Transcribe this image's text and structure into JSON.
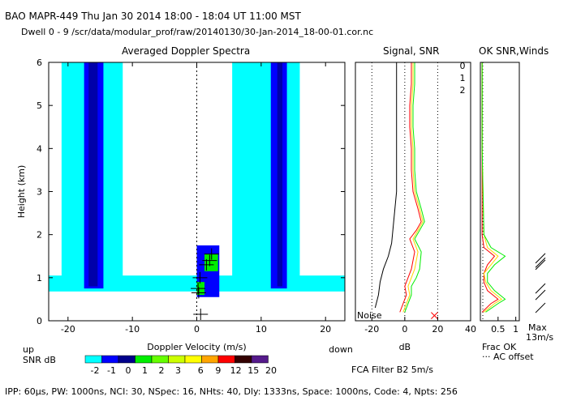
{
  "header": {
    "line1": "BAO  MAPR-449  Thu Jan 30 2014 18:00 - 18:04 UT 11:00 MST",
    "line2": "Dwell  0 - 9   /scr/data/modular_prof/raw/20140130/30-Jan-2014_18-00-01.cor.nc"
  },
  "footer": "IPP: 60μs,  PW: 1000ns,  NCI: 30,  NSpec: 16, NHts: 40,  Dly: 1333ns,  Space: 1000ns,  Code: 4,  Npts: 256",
  "fca_filter": "FCA Filter B2  5m/s",
  "colors": {
    "light_cyan": "#00ffff",
    "blue": "#0000ff",
    "navy": "#0000aa",
    "green": "#00ee00",
    "red": "#ff0000",
    "yellow": "#ffd700"
  },
  "chart_data": [
    {
      "type": "heatmap",
      "title": "Averaged Doppler Spectra",
      "xlabel": "Doppler Velocity (m/s)",
      "ylabel": "Height (km)",
      "xlim": [
        -23,
        23
      ],
      "ylim": [
        0,
        6
      ],
      "x_ticks": [
        -20,
        -10,
        0,
        10,
        20
      ],
      "y_ticks": [
        0,
        1,
        2,
        3,
        4,
        5,
        6
      ],
      "x_left_note": "up",
      "x_right_note": "down",
      "colorbar": {
        "label": "SNR dB",
        "levels": [
          "-2",
          "-1",
          "0",
          "1",
          "2",
          "3",
          "6",
          "9",
          "12",
          "15",
          "20"
        ],
        "colors": [
          "#00ffff",
          "#0000ff",
          "#00008b",
          "#00ee00",
          "#66ff00",
          "#ccff00",
          "#ffff00",
          "#ffa500",
          "#ff0000",
          "#330000",
          "#551a8b"
        ]
      },
      "bands": [
        {
          "name": "noise-band",
          "x_range": [
            -23,
            23
          ],
          "y_range": [
            0.68,
            1.05
          ],
          "color": "#00ffff"
        },
        {
          "name": "cyan-left",
          "x_range": [
            -21,
            -11.5
          ],
          "y_range": [
            0.8,
            6
          ],
          "color": "#00ffff"
        },
        {
          "name": "blue-left",
          "x_range": [
            -17.5,
            -14.5
          ],
          "y_range": [
            0.75,
            6
          ],
          "color": "#0000ff"
        },
        {
          "name": "navy-left",
          "x_range": [
            -16.8,
            -15.4
          ],
          "y_range": [
            0.8,
            6
          ],
          "color": "#0000aa"
        },
        {
          "name": "cyan-right",
          "x_range": [
            5.5,
            16
          ],
          "y_range": [
            0.8,
            6
          ],
          "color": "#00ffff"
        },
        {
          "name": "blue-right",
          "x_range": [
            11.5,
            14
          ],
          "y_range": [
            0.75,
            6
          ],
          "color": "#0000ff"
        },
        {
          "name": "navy-right",
          "x_range": [
            12.5,
            13.3
          ],
          "y_range": [
            0.8,
            6
          ],
          "color": "#0000aa"
        },
        {
          "name": "blue-lower",
          "x_range": [
            0,
            3.5
          ],
          "y_range": [
            0.55,
            1.75
          ],
          "color": "#0000ff"
        },
        {
          "name": "green-upper",
          "x_range": [
            1.2,
            3.3
          ],
          "y_range": [
            1.15,
            1.55
          ],
          "color": "#00ee00"
        },
        {
          "name": "green-lower",
          "x_range": [
            0,
            1.2
          ],
          "y_range": [
            0.6,
            0.9
          ],
          "color": "#00ee00"
        }
      ],
      "wind_markers": [
        {
          "x": 2.3,
          "y": 1.55
        },
        {
          "x": 2.0,
          "y": 1.4
        },
        {
          "x": 1.5,
          "y": 1.3
        },
        {
          "x": 0.5,
          "y": 1.0
        },
        {
          "x": 0.2,
          "y": 0.75
        },
        {
          "x": 0.3,
          "y": 0.65
        },
        {
          "x": 0.6,
          "y": 0.15
        }
      ]
    },
    {
      "type": "line",
      "title": "Signal, SNR",
      "xlabel": "dB",
      "xlim": [
        -30,
        40
      ],
      "ylim": [
        0,
        6
      ],
      "x_ticks": [
        -20,
        0,
        20,
        40
      ],
      "noise_label": "Noise",
      "series": [
        {
          "name": "0",
          "color": "#ff0000",
          "x": [
            -3,
            -2,
            1,
            0,
            2,
            4,
            6,
            3,
            7,
            10,
            8,
            5,
            4,
            4,
            3,
            3,
            4,
            4,
            4
          ],
          "y": [
            0.2,
            0.3,
            0.6,
            0.8,
            1.0,
            1.2,
            1.6,
            1.9,
            2.1,
            2.3,
            2.6,
            3.0,
            3.5,
            4.0,
            4.5,
            5.0,
            5.5,
            5.8,
            6.0
          ]
        },
        {
          "name": "1",
          "color": "#ffd700",
          "x": [
            -1,
            0,
            3,
            2,
            4,
            6,
            8,
            5,
            8,
            11,
            9,
            6,
            5,
            5,
            4,
            4,
            5,
            5,
            5
          ],
          "y": [
            0.2,
            0.3,
            0.6,
            0.8,
            1.0,
            1.2,
            1.6,
            1.9,
            2.1,
            2.3,
            2.6,
            3.0,
            3.5,
            4.0,
            4.5,
            5.0,
            5.5,
            5.8,
            6.0
          ]
        },
        {
          "name": "2",
          "color": "#00ee00",
          "x": [
            0,
            1,
            4,
            4,
            7,
            9,
            10,
            6,
            9,
            12,
            10,
            7,
            6,
            6,
            5,
            5,
            6,
            6,
            6
          ],
          "y": [
            0.2,
            0.3,
            0.6,
            0.8,
            1.0,
            1.2,
            1.6,
            1.9,
            2.1,
            2.3,
            2.6,
            3.0,
            3.5,
            4.0,
            4.5,
            5.0,
            5.5,
            5.8,
            6.0
          ]
        },
        {
          "name": "",
          "color": "#000000",
          "x": [
            -18,
            -16,
            -15,
            -13,
            -10,
            -8,
            -7,
            -6,
            -5,
            -5,
            -5,
            -5,
            -5,
            -5,
            -5,
            -5,
            -5
          ],
          "y": [
            0.3,
            0.6,
            0.9,
            1.2,
            1.5,
            1.8,
            2.2,
            2.6,
            3.0,
            3.5,
            4.0,
            4.5,
            5.0,
            5.5,
            5.8,
            6.0,
            6.0
          ]
        }
      ],
      "marker": {
        "x": 18,
        "y": 0.12
      }
    },
    {
      "type": "line",
      "title": "OK SNR,Winds",
      "xlim": [
        0,
        1.1
      ],
      "ylim": [
        0,
        6
      ],
      "x_ticks": [
        0.5,
        1
      ],
      "x_tick_labels": [
        "0.5",
        "1"
      ],
      "legend": [
        "0",
        "1",
        "2"
      ],
      "notes": [
        "Frac OK",
        "AC offset",
        "Max",
        "13m/s"
      ],
      "series": [
        {
          "name": "0",
          "color": "#ff0000",
          "x": [
            0.05,
            0.3,
            0.5,
            0.2,
            0.1,
            0.1,
            0.2,
            0.4,
            0.1,
            0.05,
            0.05,
            0.05
          ],
          "y": [
            0.2,
            0.4,
            0.5,
            0.7,
            0.9,
            1.1,
            1.3,
            1.5,
            1.7,
            2.0,
            4.0,
            6.0
          ]
        },
        {
          "name": "1",
          "color": "#ffd700",
          "x": [
            0.1,
            0.4,
            0.6,
            0.3,
            0.15,
            0.1,
            0.3,
            0.5,
            0.2,
            0.1,
            0.05,
            0.05
          ],
          "y": [
            0.2,
            0.4,
            0.5,
            0.7,
            0.9,
            1.1,
            1.3,
            1.5,
            1.7,
            2.0,
            4.0,
            6.0
          ]
        },
        {
          "name": "2",
          "color": "#00ee00",
          "x": [
            0.15,
            0.5,
            0.7,
            0.4,
            0.2,
            0.2,
            0.4,
            0.7,
            0.3,
            0.1,
            0.05,
            0.05
          ],
          "y": [
            0.2,
            0.4,
            0.5,
            0.7,
            0.9,
            1.1,
            1.3,
            1.5,
            1.7,
            2.0,
            4.0,
            6.0
          ]
        }
      ]
    }
  ]
}
